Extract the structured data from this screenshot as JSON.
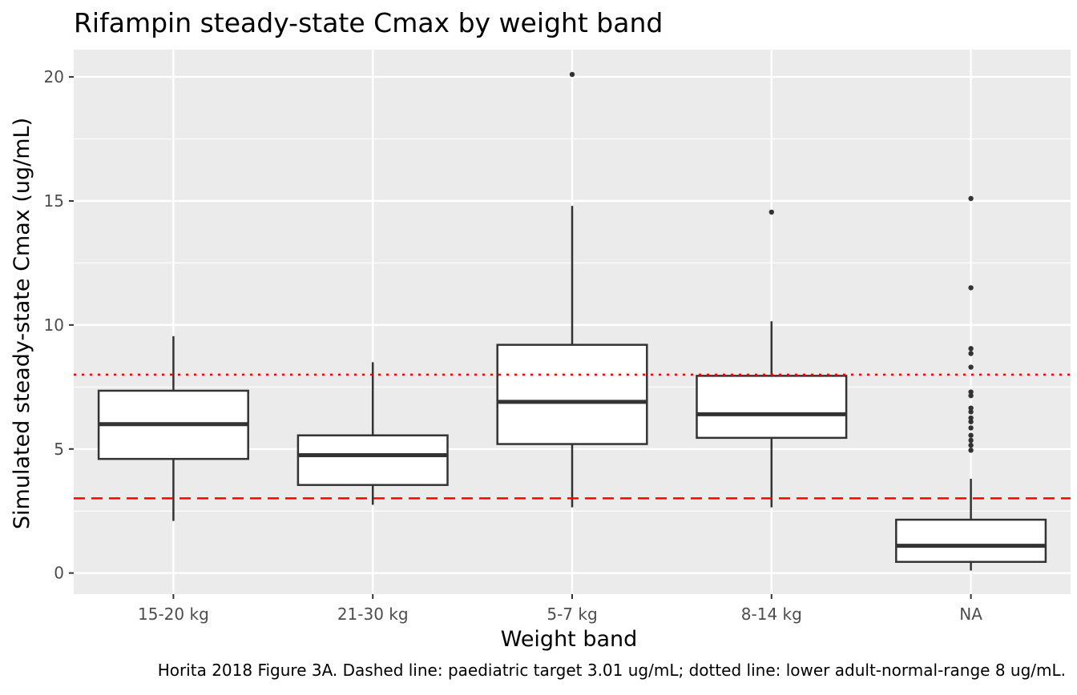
{
  "chart_data": {
    "type": "boxplot",
    "title": "Rifampin steady-state Cmax by weight band",
    "xlabel": "Weight band",
    "ylabel": "Simulated steady-state Cmax (ug/mL)",
    "caption": "Horita 2018 Figure 3A. Dashed line: paediatric target 3.01 ug/mL; dotted line: lower adult-normal-range 8 ug/mL.",
    "ylim": [
      -0.85,
      21.1
    ],
    "yticks": [
      0,
      5,
      10,
      15,
      20
    ],
    "categories": [
      "15-20 kg",
      "21-30 kg",
      "5-7 kg",
      "8-14 kg",
      "NA"
    ],
    "boxes": [
      {
        "category": "15-20 kg",
        "lower_whisker": 2.1,
        "q1": 4.6,
        "median": 6.0,
        "q3": 7.35,
        "upper_whisker": 9.55,
        "outliers": []
      },
      {
        "category": "21-30 kg",
        "lower_whisker": 2.75,
        "q1": 3.55,
        "median": 4.75,
        "q3": 5.55,
        "upper_whisker": 8.5,
        "outliers": []
      },
      {
        "category": "5-7 kg",
        "lower_whisker": 2.65,
        "q1": 5.2,
        "median": 6.9,
        "q3": 9.2,
        "upper_whisker": 14.8,
        "outliers": [
          20.1
        ]
      },
      {
        "category": "8-14 kg",
        "lower_whisker": 2.65,
        "q1": 5.45,
        "median": 6.4,
        "q3": 7.95,
        "upper_whisker": 10.15,
        "outliers": [
          14.55
        ]
      },
      {
        "category": "NA",
        "lower_whisker": 0.1,
        "q1": 0.45,
        "median": 1.1,
        "q3": 2.15,
        "upper_whisker": 3.8,
        "outliers": [
          15.1,
          11.5,
          9.05,
          8.85,
          8.3,
          7.3,
          7.15,
          6.65,
          6.5,
          6.25,
          6.1,
          5.85,
          5.55,
          5.35,
          5.15,
          4.95
        ]
      }
    ],
    "reference_lines": [
      {
        "value": 3.01,
        "style": "dashed",
        "color": "#ff0000"
      },
      {
        "value": 8,
        "style": "dotted",
        "color": "#ff0000"
      }
    ],
    "colors": {
      "panel_background": "#ebebeb",
      "grid": "#ffffff",
      "box_fill": "#ffffff",
      "box_stroke": "#333333",
      "outlier": "#333333",
      "axis_text": "#4d4d4d",
      "title_text": "#000000"
    },
    "grid": true,
    "legend": "none"
  }
}
